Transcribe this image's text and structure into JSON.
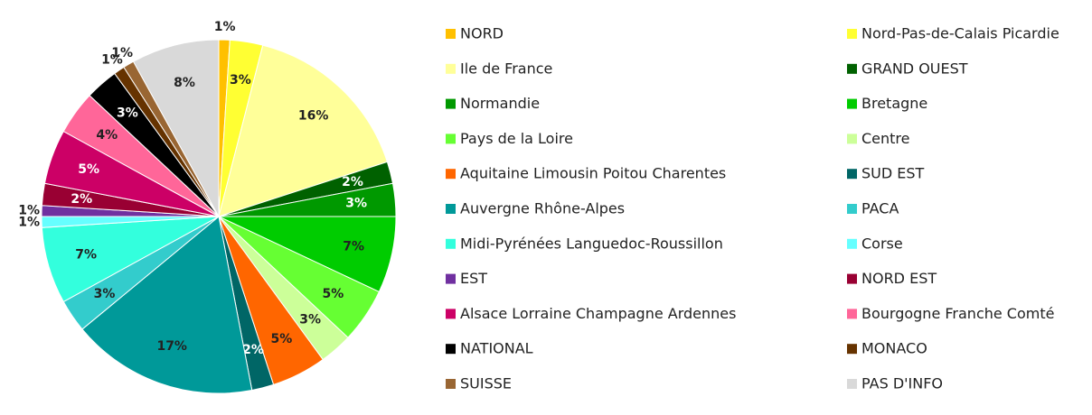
{
  "chart_data": {
    "type": "pie",
    "categories": [
      "NORD",
      "Nord-Pas-de-Calais Picardie",
      "Ile de France",
      "GRAND OUEST",
      "Normandie",
      "Bretagne",
      "Pays de la Loire",
      "Centre",
      "Aquitaine Limousin Poitou Charentes",
      "SUD EST",
      "Auvergne Rhône-Alpes",
      "PACA",
      "Midi-Pyrénées Languedoc-Roussillon",
      "Corse",
      "EST",
      "NORD EST",
      "Alsace Lorraine Champagne Ardennes",
      "Bourgogne Franche Comté",
      "NATIONAL",
      "MONACO",
      "SUISSE",
      "PAS D'INFO"
    ],
    "values": [
      1,
      3,
      16,
      2,
      3,
      7,
      5,
      3,
      5,
      2,
      17,
      3,
      7,
      1,
      1,
      2,
      5,
      4,
      3,
      1,
      1,
      8
    ],
    "value_labels": [
      "1%",
      "3%",
      "16%",
      "2%",
      "3%",
      "7%",
      "5%",
      "3%",
      "5%",
      "2%",
      "17%",
      "3%",
      "7%",
      "1%",
      "1%",
      "2%",
      "5%",
      "4%",
      "3%",
      "1%",
      "1%",
      "8%"
    ],
    "colors": [
      "#ffc000",
      "#ffff33",
      "#ffff99",
      "#006100",
      "#009900",
      "#00cc00",
      "#66ff33",
      "#ccff99",
      "#ff6600",
      "#006666",
      "#009999",
      "#33cccc",
      "#33ffdd",
      "#66ffff",
      "#7030a0",
      "#990033",
      "#cc0066",
      "#ff6699",
      "#000000",
      "#663300",
      "#996633",
      "#d9d9d9"
    ],
    "legend": "right"
  }
}
